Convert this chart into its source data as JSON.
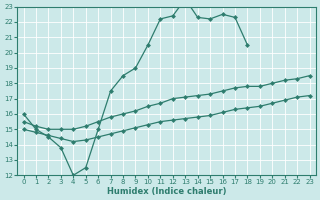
{
  "bg_color": "#cce9e9",
  "grid_color": "#b0d8d8",
  "line_color": "#2e7d6e",
  "xlabel": "Humidex (Indice chaleur)",
  "xlim": [
    -0.5,
    23.5
  ],
  "ylim": [
    12,
    23
  ],
  "xticks": [
    0,
    1,
    2,
    3,
    4,
    5,
    6,
    7,
    8,
    9,
    10,
    11,
    12,
    13,
    14,
    15,
    16,
    17,
    18,
    19,
    20,
    21,
    22,
    23
  ],
  "yticks": [
    12,
    13,
    14,
    15,
    16,
    17,
    18,
    19,
    20,
    21,
    22,
    23
  ],
  "line1_x": [
    0,
    1,
    2,
    3,
    4,
    5,
    6,
    7,
    8,
    9,
    10,
    11,
    12,
    13,
    14,
    15,
    16,
    17,
    18
  ],
  "line1_y": [
    16,
    15,
    14.5,
    13.8,
    12,
    12.5,
    15.0,
    17.5,
    18.5,
    19.0,
    20.5,
    22.2,
    22.4,
    23.5,
    22.3,
    22.2,
    22.5,
    22.3,
    20.5
  ],
  "line2_x": [
    0,
    1,
    2,
    3,
    4,
    5,
    6,
    7,
    8,
    9,
    10,
    11,
    12,
    13,
    14,
    15,
    16,
    17,
    18,
    19,
    20,
    21,
    22,
    23
  ],
  "line2_y": [
    15.5,
    15.2,
    15.0,
    15.0,
    15.0,
    15.2,
    15.5,
    15.8,
    16.0,
    16.2,
    16.5,
    16.7,
    17.0,
    17.1,
    17.2,
    17.3,
    17.5,
    17.7,
    17.8,
    17.8,
    18.0,
    18.2,
    18.3,
    18.5
  ],
  "line3_x": [
    0,
    1,
    2,
    3,
    4,
    5,
    6,
    7,
    8,
    9,
    10,
    11,
    12,
    13,
    14,
    15,
    16,
    17,
    18,
    19,
    20,
    21,
    22,
    23
  ],
  "line3_y": [
    15.0,
    14.8,
    14.6,
    14.4,
    14.2,
    14.3,
    14.5,
    14.7,
    14.9,
    15.1,
    15.3,
    15.5,
    15.6,
    15.7,
    15.8,
    15.9,
    16.1,
    16.3,
    16.4,
    16.5,
    16.7,
    16.9,
    17.1,
    17.2
  ]
}
